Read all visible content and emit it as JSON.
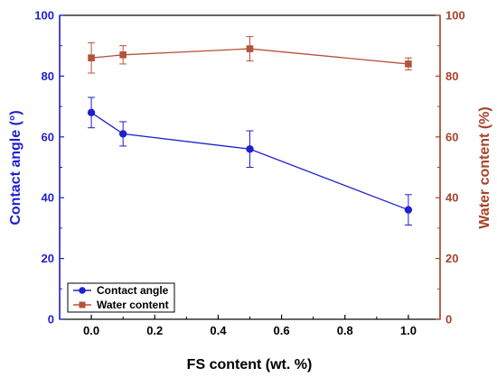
{
  "chart_data": {
    "type": "line",
    "xlabel": "FS content (wt. %)",
    "x_ticks": [
      "0.0",
      "0.2",
      "0.4",
      "0.6",
      "0.8",
      "1.0"
    ],
    "xlim": [
      -0.1,
      1.1
    ],
    "y_left": {
      "label": "Contact angle (°)",
      "ylim": [
        0,
        100
      ],
      "ticks": [
        "0",
        "20",
        "40",
        "60",
        "80",
        "100"
      ],
      "color": "#1f1fd0"
    },
    "y_right": {
      "label": "Water content (%)",
      "ylim": [
        0,
        100
      ],
      "ticks": [
        "0",
        "20",
        "40",
        "60",
        "80",
        "100"
      ],
      "color": "#a8422a"
    },
    "legend_position": "bottom-left",
    "series": [
      {
        "name": "Contact angle",
        "axis": "left",
        "color": "#1f1fd0",
        "marker": "circle",
        "x": [
          0.0,
          0.1,
          0.5,
          1.0
        ],
        "y": [
          68,
          61,
          56,
          36
        ],
        "error": [
          5,
          4,
          6,
          5
        ]
      },
      {
        "name": "Water content",
        "axis": "right",
        "color": "#b5523b",
        "marker": "square",
        "x": [
          0.0,
          0.1,
          0.5,
          1.0
        ],
        "y": [
          86,
          87,
          89,
          84
        ],
        "error": [
          5,
          3,
          4,
          2
        ]
      }
    ]
  }
}
